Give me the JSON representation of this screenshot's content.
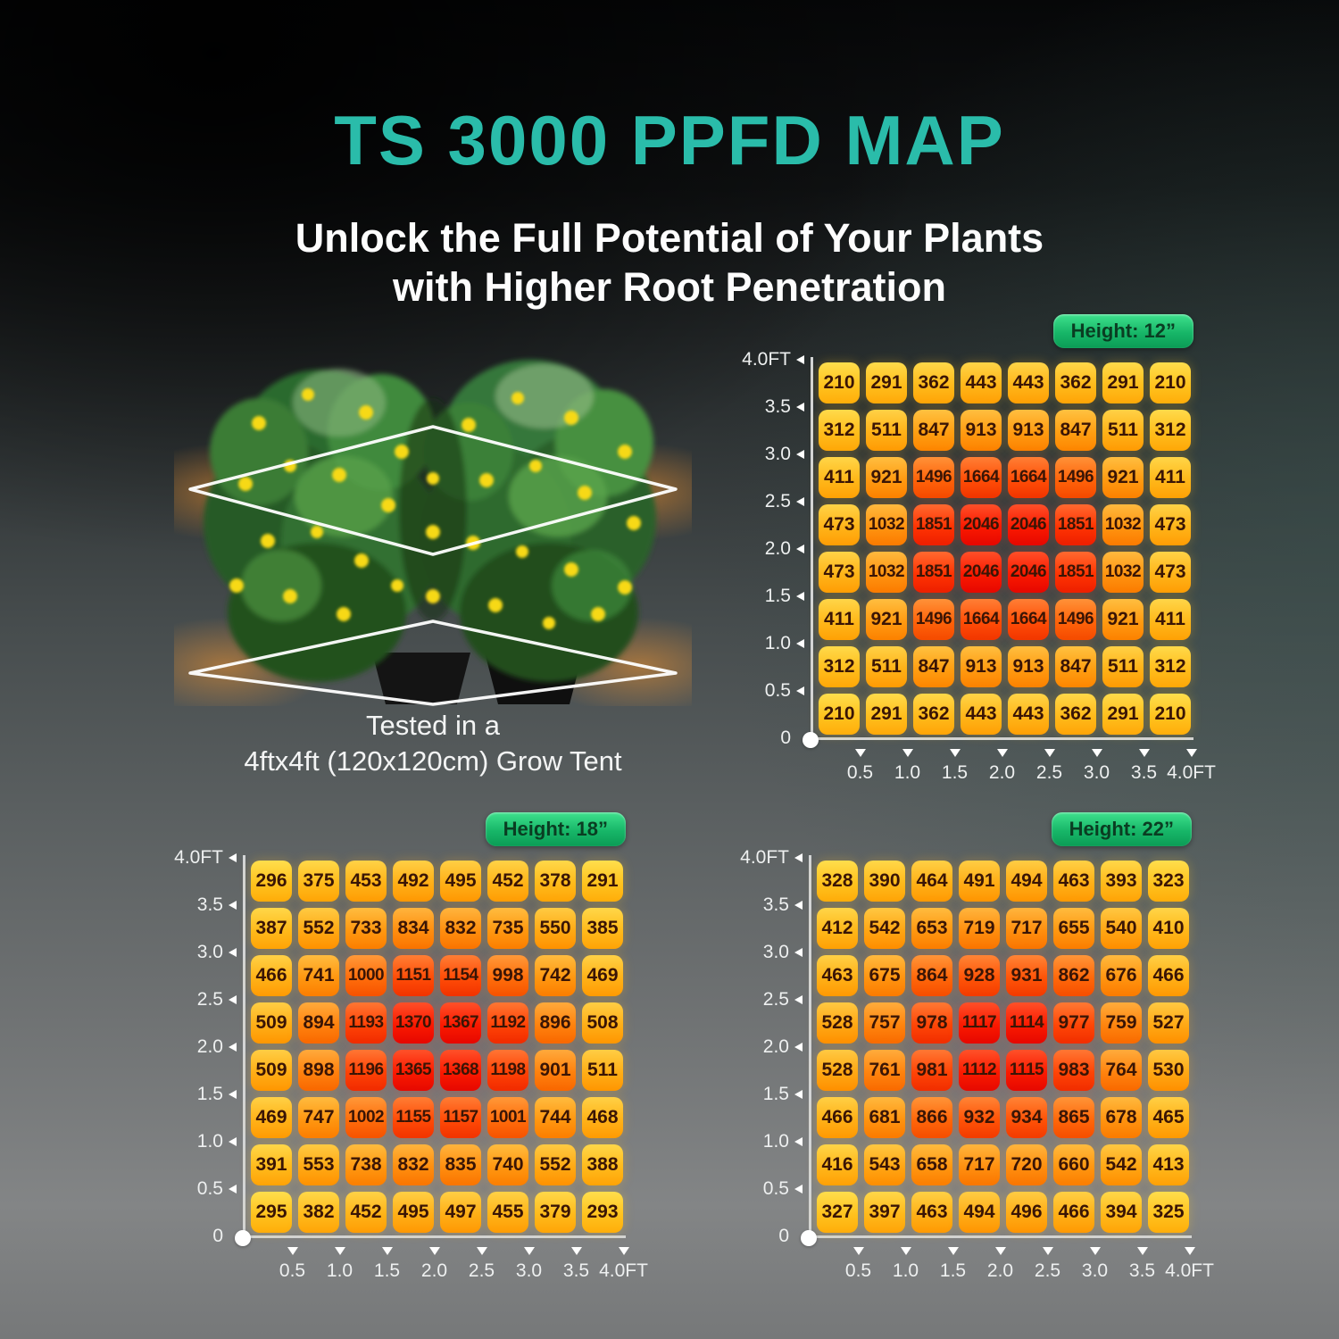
{
  "title": "TS 3000 PPFD MAP",
  "subtitle": {
    "line1": "Unlock the Full Potential of Your Plants",
    "line2": "with Higher Root Penetration"
  },
  "plant_caption": {
    "line1": "Tested in a",
    "line2": "4ftx4ft (120x120cm) Grow Tent"
  },
  "colors": {
    "accent_teal": "#2abcaa",
    "badge_green": "#17b668",
    "axis_white": "#d3d5d6",
    "heat_low": "#ffc21c",
    "heat_high": "#ee250b",
    "cell_text": "#3a1505"
  },
  "axis": {
    "y_labels": [
      "4.0FT",
      "3.5",
      "3.0",
      "2.5",
      "2.0",
      "1.5",
      "1.0",
      "0.5",
      "0"
    ],
    "x_labels": [
      "0.5",
      "1.0",
      "1.5",
      "2.0",
      "2.5",
      "3.0",
      "3.5",
      "4.0FT"
    ]
  },
  "chart_data": [
    {
      "type": "heatmap",
      "title": "Height: 12”",
      "x_labels": [
        "0.5",
        "1.0",
        "1.5",
        "2.0",
        "2.5",
        "3.0",
        "3.5",
        "4.0FT"
      ],
      "y_labels": [
        "4.0FT",
        "3.5",
        "3.0",
        "2.5",
        "2.0",
        "1.5",
        "1.0",
        "0.5",
        "0"
      ],
      "rows": [
        [
          210,
          291,
          362,
          443,
          443,
          362,
          291,
          210
        ],
        [
          312,
          511,
          847,
          913,
          913,
          847,
          511,
          312
        ],
        [
          411,
          921,
          1496,
          1664,
          1664,
          1496,
          921,
          411
        ],
        [
          473,
          1032,
          1851,
          2046,
          2046,
          1851,
          1032,
          473
        ],
        [
          473,
          1032,
          1851,
          2046,
          2046,
          1851,
          1032,
          473
        ],
        [
          411,
          921,
          1496,
          1664,
          1664,
          1496,
          921,
          411
        ],
        [
          312,
          511,
          847,
          913,
          913,
          847,
          511,
          312
        ],
        [
          210,
          291,
          362,
          443,
          443,
          362,
          291,
          210
        ]
      ]
    },
    {
      "type": "heatmap",
      "title": "Height: 18”",
      "x_labels": [
        "0.5",
        "1.0",
        "1.5",
        "2.0",
        "2.5",
        "3.0",
        "3.5",
        "4.0FT"
      ],
      "y_labels": [
        "4.0FT",
        "3.5",
        "3.0",
        "2.5",
        "2.0",
        "1.5",
        "1.0",
        "0.5",
        "0"
      ],
      "rows": [
        [
          296,
          375,
          453,
          492,
          495,
          452,
          378,
          291
        ],
        [
          387,
          552,
          733,
          834,
          832,
          735,
          550,
          385
        ],
        [
          466,
          741,
          1000,
          1151,
          1154,
          998,
          742,
          469
        ],
        [
          509,
          894,
          1193,
          1370,
          1367,
          1192,
          896,
          508
        ],
        [
          509,
          898,
          1196,
          1365,
          1368,
          1198,
          901,
          511
        ],
        [
          469,
          747,
          1002,
          1155,
          1157,
          1001,
          744,
          468
        ],
        [
          391,
          553,
          738,
          832,
          835,
          740,
          552,
          388
        ],
        [
          295,
          382,
          452,
          495,
          497,
          455,
          379,
          293
        ]
      ]
    },
    {
      "type": "heatmap",
      "title": "Height: 22”",
      "x_labels": [
        "0.5",
        "1.0",
        "1.5",
        "2.0",
        "2.5",
        "3.0",
        "3.5",
        "4.0FT"
      ],
      "y_labels": [
        "4.0FT",
        "3.5",
        "3.0",
        "2.5",
        "2.0",
        "1.5",
        "1.0",
        "0.5",
        "0"
      ],
      "rows": [
        [
          328,
          390,
          464,
          491,
          494,
          463,
          393,
          323
        ],
        [
          412,
          542,
          653,
          719,
          717,
          655,
          540,
          410
        ],
        [
          463,
          675,
          864,
          928,
          931,
          862,
          676,
          466
        ],
        [
          528,
          757,
          978,
          1117,
          1114,
          977,
          759,
          527
        ],
        [
          528,
          761,
          981,
          1112,
          1115,
          983,
          764,
          530
        ],
        [
          466,
          681,
          866,
          932,
          934,
          865,
          678,
          465
        ],
        [
          416,
          543,
          658,
          717,
          720,
          660,
          542,
          413
        ],
        [
          327,
          397,
          463,
          494,
          496,
          466,
          394,
          325
        ]
      ]
    }
  ]
}
